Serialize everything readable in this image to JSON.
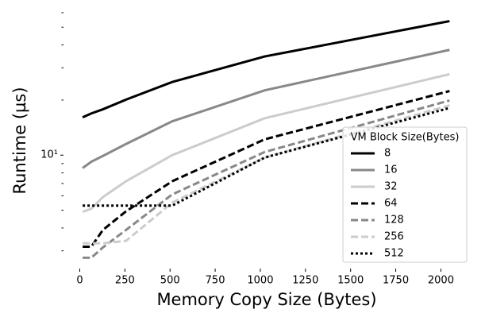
{
  "chart_data": {
    "type": "line",
    "x_label": "Memory Copy Size (Bytes)",
    "y_label": "Runtime (µs)",
    "x": [
      16,
      64,
      128,
      256,
      512,
      1024,
      2048
    ],
    "xlim": [
      -90,
      2130
    ],
    "xticks": [
      0,
      250,
      500,
      750,
      1000,
      1250,
      1500,
      1750,
      2000
    ],
    "yscale": "log",
    "ylim": [
      2.4,
      65
    ],
    "yticks": [
      {
        "value": 10,
        "label": "10¹"
      }
    ],
    "yminor_ticks": [
      3,
      4,
      5,
      6,
      7,
      8,
      9,
      20,
      30,
      40,
      50,
      60
    ],
    "legend_title": "VM Block Size(Bytes)",
    "legend_position": "lower right",
    "series": [
      {
        "name": "8",
        "color": "#000000",
        "dash": "solid",
        "values": [
          16.1,
          16.9,
          17.8,
          20.1,
          25.1,
          34.6,
          54
        ]
      },
      {
        "name": "16",
        "color": "#888888",
        "dash": "solid",
        "values": [
          8.5,
          9.2,
          9.9,
          11.5,
          15.3,
          22.6,
          37.6
        ]
      },
      {
        "name": "32",
        "color": "#cccccc",
        "dash": "solid",
        "values": [
          4.9,
          5.1,
          5.9,
          7.2,
          10,
          15.9,
          27.7
        ]
      },
      {
        "name": "64",
        "color": "#000000",
        "dash": "dashed",
        "values": [
          3.16,
          3.16,
          3.9,
          4.93,
          7.2,
          12.2,
          22.4
        ]
      },
      {
        "name": "128",
        "color": "#888888",
        "dash": "dashed",
        "values": [
          2.75,
          2.75,
          3.13,
          3.9,
          6.1,
          10.4,
          19.9
        ]
      },
      {
        "name": "256",
        "color": "#cccccc",
        "dash": "dashed",
        "values": [
          3.3,
          3.3,
          3.3,
          3.4,
          5.5,
          9.7,
          18.7
        ]
      },
      {
        "name": "512",
        "color": "#000000",
        "dash": "dotted",
        "values": [
          5.3,
          5.3,
          5.3,
          5.3,
          5.3,
          9.7,
          18.1
        ]
      }
    ]
  }
}
